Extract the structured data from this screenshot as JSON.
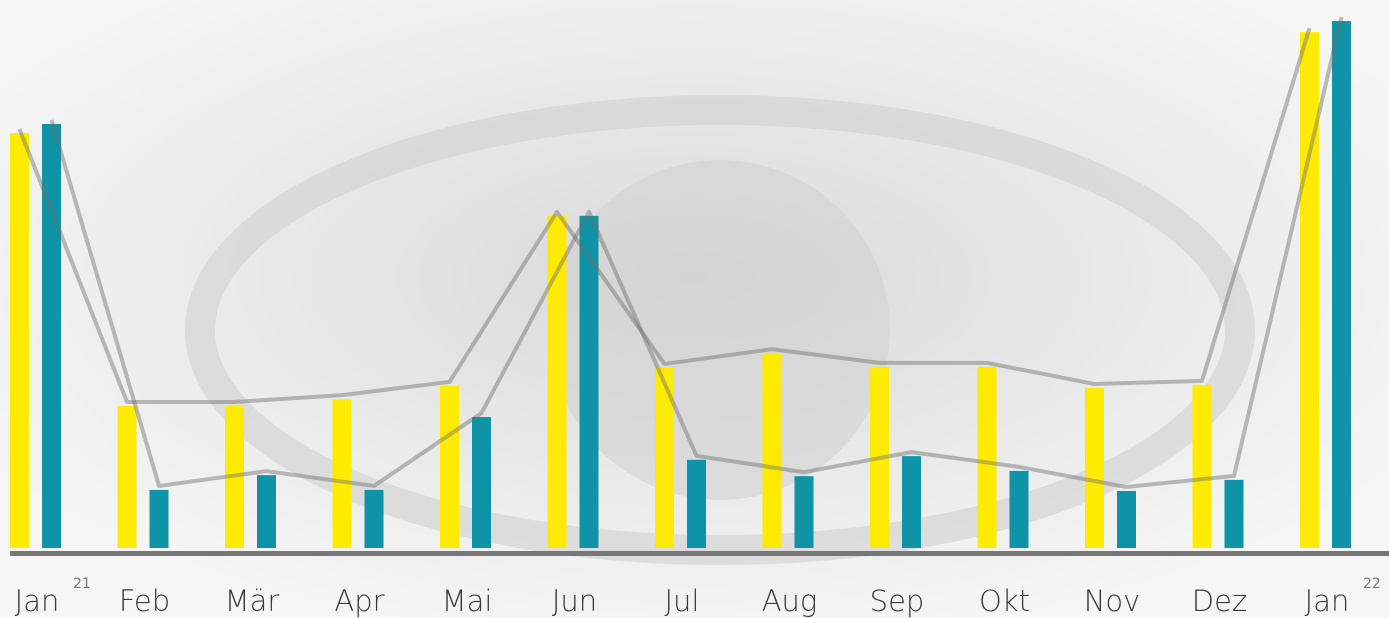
{
  "chart_data": {
    "type": "bar",
    "categories": [
      "Jan",
      "Feb",
      "Mär",
      "Apr",
      "Mai",
      "Jun",
      "Jul",
      "Aug",
      "Sep",
      "Okt",
      "Nov",
      "Dez",
      "Jan"
    ],
    "year_labels": [
      "21",
      "22"
    ],
    "ylim": [
      0,
      100
    ],
    "series": [
      {
        "color": "#ffeb00",
        "values": [
          78.6,
          26.9,
          26.9,
          28.2,
          30.7,
          62.9,
          34.1,
          36.9,
          34.3,
          34.3,
          30.3,
          30.9,
          97.7
        ]
      },
      {
        "color": "#0e94a6",
        "values": [
          80.3,
          11.0,
          13.8,
          11.0,
          24.8,
          62.9,
          16.7,
          13.6,
          17.4,
          14.6,
          10.8,
          12.9,
          99.8
        ]
      }
    ]
  }
}
